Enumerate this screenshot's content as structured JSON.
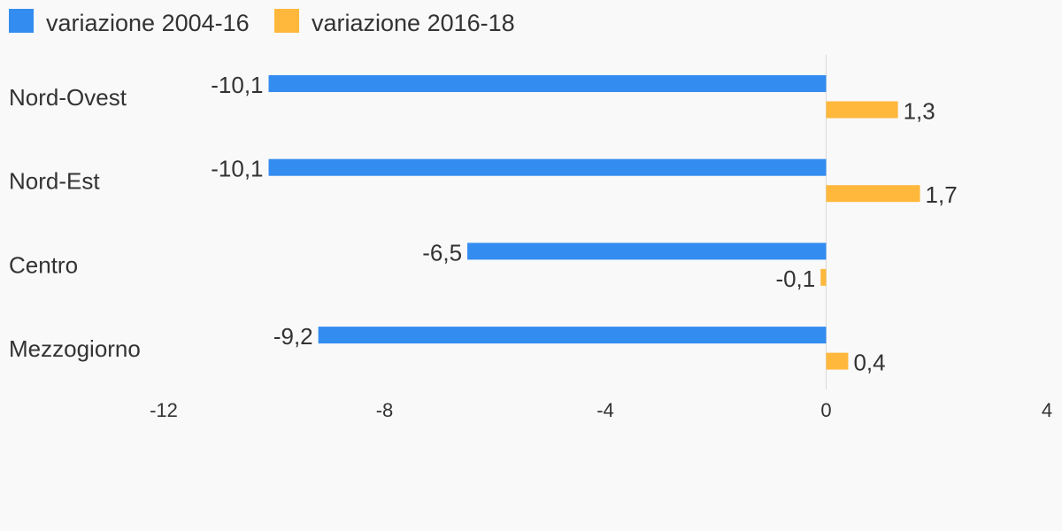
{
  "chart_data": {
    "type": "bar",
    "orientation": "horizontal",
    "categories": [
      "Nord-Ovest",
      "Nord-Est",
      "Centro",
      "Mezzogiorno"
    ],
    "series": [
      {
        "name": "variazione 2004-16",
        "color": "#338cf0",
        "values": [
          -10.1,
          -10.1,
          -6.5,
          -9.2
        ],
        "labels": [
          "-10,1",
          "-10,1",
          "-6,5",
          "-9,2"
        ]
      },
      {
        "name": "variazione 2016-18",
        "color": "#ffb83c",
        "values": [
          1.3,
          1.7,
          -0.1,
          0.4
        ],
        "labels": [
          "1,3",
          "1,7",
          "-0,1",
          "0,4"
        ]
      }
    ],
    "xlim": [
      -12,
      4
    ],
    "xticks": [
      -12,
      -8,
      -4,
      0,
      4
    ],
    "xtick_labels": [
      "-12",
      "-8",
      "-4",
      "0",
      "4"
    ],
    "title": "",
    "xlabel": "",
    "ylabel": "",
    "grid": false,
    "legend_position": "top-left"
  }
}
